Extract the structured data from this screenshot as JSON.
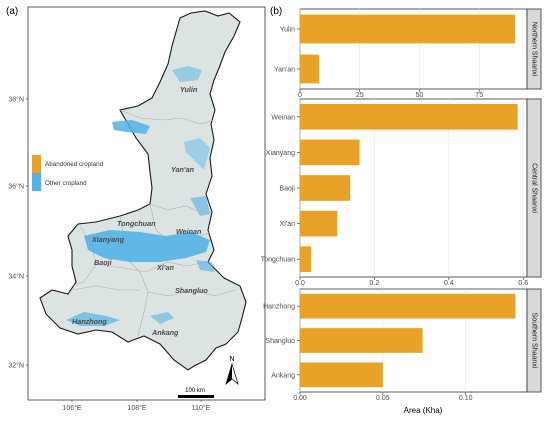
{
  "panel_a": {
    "letter": "(a)",
    "y_ticks": [
      "38°N",
      "36°N",
      "34°N",
      "32°N"
    ],
    "x_ticks": [
      "106°E",
      "108°E",
      "110°E"
    ],
    "legend": [
      {
        "label": "Abandoned cropland",
        "color": "#E8A227"
      },
      {
        "label": "Other cropland",
        "color": "#52B3E6"
      }
    ],
    "cities": [
      "Yulin",
      "Yan'an",
      "Tongchuan",
      "Weinan",
      "Xianyang",
      "Baoji",
      "Xi'an",
      "Shangluo",
      "Hanzhong",
      "Ankang"
    ],
    "scale_bar": "100 km",
    "north": "N",
    "colors": {
      "land": "#DCE3E3",
      "border": "#1a1a1a",
      "inner_border": "#b0b0b0"
    }
  },
  "chart_data": [
    {
      "type": "bar",
      "panel_letter": "(b)",
      "strip": "Northern Shaanxi",
      "categories": [
        "Yulin",
        "Yan'an"
      ],
      "values": [
        90,
        8
      ],
      "xlim": [
        0,
        95
      ],
      "x_ticks": [
        "0",
        "25",
        "50",
        "75"
      ],
      "color": "#E8A227"
    },
    {
      "type": "bar",
      "strip": "Central Shaanxi",
      "categories": [
        "Weinan",
        "Xianyang",
        "Baoji",
        "Xi'an",
        "Tongchuan"
      ],
      "values": [
        0.585,
        0.16,
        0.135,
        0.1,
        0.03
      ],
      "xlim": [
        0,
        0.61
      ],
      "x_ticks": [
        "0.0",
        "0.2",
        "0.4",
        "0.6"
      ],
      "color": "#E8A227"
    },
    {
      "type": "bar",
      "strip": "Southern Shaanxi",
      "categories": [
        "Hanzhong",
        "Shangluo",
        "Ankang"
      ],
      "values": [
        0.13,
        0.074,
        0.05
      ],
      "xlim": [
        0,
        0.137
      ],
      "x_ticks": [
        "0.00",
        "0.05",
        "0.10"
      ],
      "xlabel": "Area (Kha)",
      "color": "#E8A227"
    }
  ]
}
